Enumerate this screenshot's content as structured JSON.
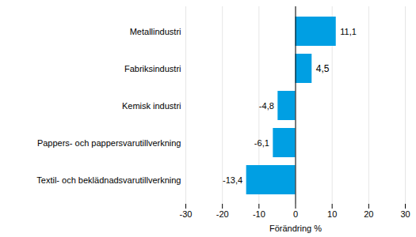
{
  "chart_data": {
    "type": "bar",
    "orientation": "horizontal",
    "categories": [
      "Metallindustri",
      "Fabriksindustri",
      "Kemisk industri",
      "Pappers- och pappersvarutillverkning",
      "Textil- och beklädnadsvarutillverkning"
    ],
    "values": [
      11.1,
      4.5,
      -4.8,
      -6.1,
      -13.4
    ],
    "value_labels": [
      "11,1",
      "4,5",
      "-4,8",
      "-6,1",
      "-13,4"
    ],
    "color": "#009fe3",
    "xlabel": "Förändring %",
    "xlim": [
      -30,
      30
    ],
    "xticks": [
      -30,
      -20,
      -10,
      0,
      10,
      20,
      30
    ],
    "grid": true,
    "data_labels": true
  }
}
